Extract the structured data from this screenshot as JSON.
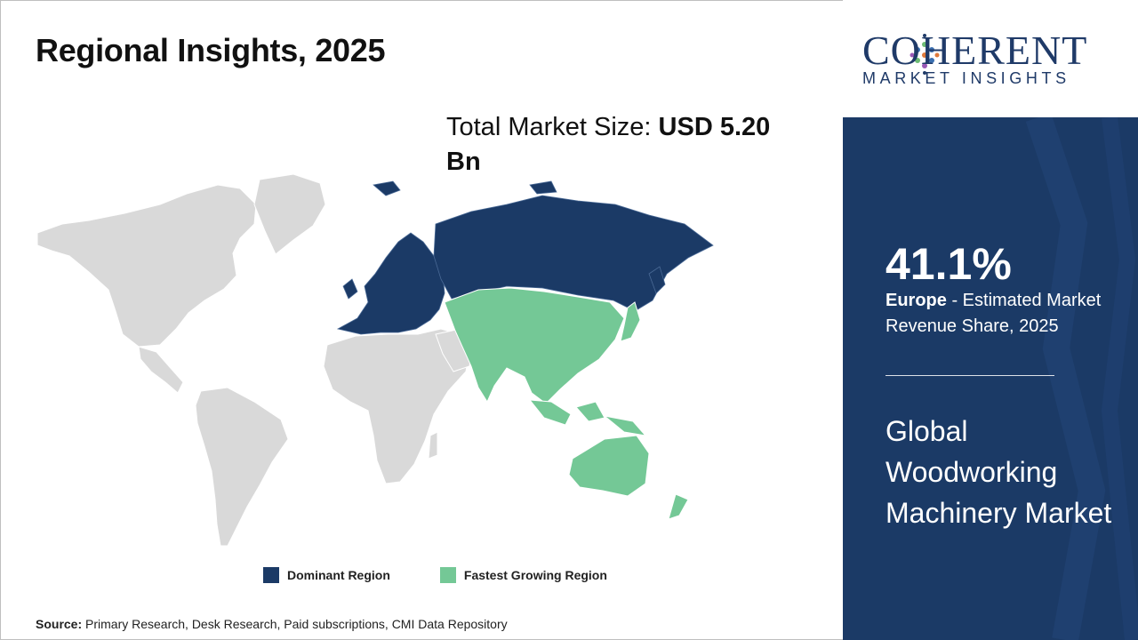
{
  "header": {
    "title": "Regional Insights, 2025"
  },
  "market_size": {
    "label": "Total Market Size: ",
    "value": "USD 5.20 Bn"
  },
  "map": {
    "regions": [
      {
        "name": "North America",
        "category": "other"
      },
      {
        "name": "Latin America",
        "category": "other"
      },
      {
        "name": "Europe",
        "category": "dominant"
      },
      {
        "name": "Russia",
        "category": "dominant"
      },
      {
        "name": "Middle East & Africa",
        "category": "other"
      },
      {
        "name": "Asia Pacific",
        "category": "fastest"
      }
    ],
    "colors": {
      "dominant": "#1b3a66",
      "fastest": "#74c896",
      "other": "#d9d9d9"
    }
  },
  "legend": {
    "dominant_label": "Dominant Region",
    "fastest_label": "Fastest Growing Region"
  },
  "source": {
    "label": "Source:",
    "text": " Primary Research, Desk Research, Paid subscriptions, CMI Data Repository"
  },
  "logo": {
    "wordmark": "COHERENT",
    "subline": "MARKET INSIGHTS"
  },
  "stat": {
    "value": "41.1%",
    "region": "Europe",
    "description": " - Estimated Market Revenue Share, 2025"
  },
  "market_name": "Global Woodworking Machinery Market"
}
